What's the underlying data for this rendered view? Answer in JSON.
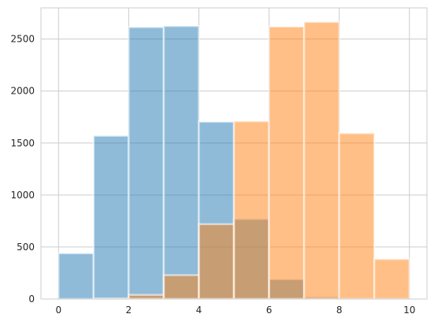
{
  "chart_data": {
    "type": "bar",
    "title": "",
    "xlabel": "",
    "ylabel": "",
    "xlim": [
      -0.5,
      10.5
    ],
    "ylim": [
      0,
      2800
    ],
    "grid": true,
    "bin_edges": [
      0,
      1,
      2,
      3,
      4,
      5,
      6,
      7,
      8,
      9,
      10
    ],
    "x_ticks": [
      "0",
      "2",
      "4",
      "6",
      "8",
      "10"
    ],
    "y_ticks": [
      "0",
      "500",
      "1000",
      "1500",
      "2000",
      "2500"
    ],
    "series": [
      {
        "color": "#1f77b4",
        "counts": [
          440,
          1570,
          2615,
          2625,
          1705,
          770,
          190,
          20,
          0,
          0
        ]
      },
      {
        "color": "#ff7f0e",
        "counts": [
          0,
          5,
          40,
          230,
          720,
          1710,
          2620,
          2665,
          1595,
          385
        ]
      }
    ]
  }
}
